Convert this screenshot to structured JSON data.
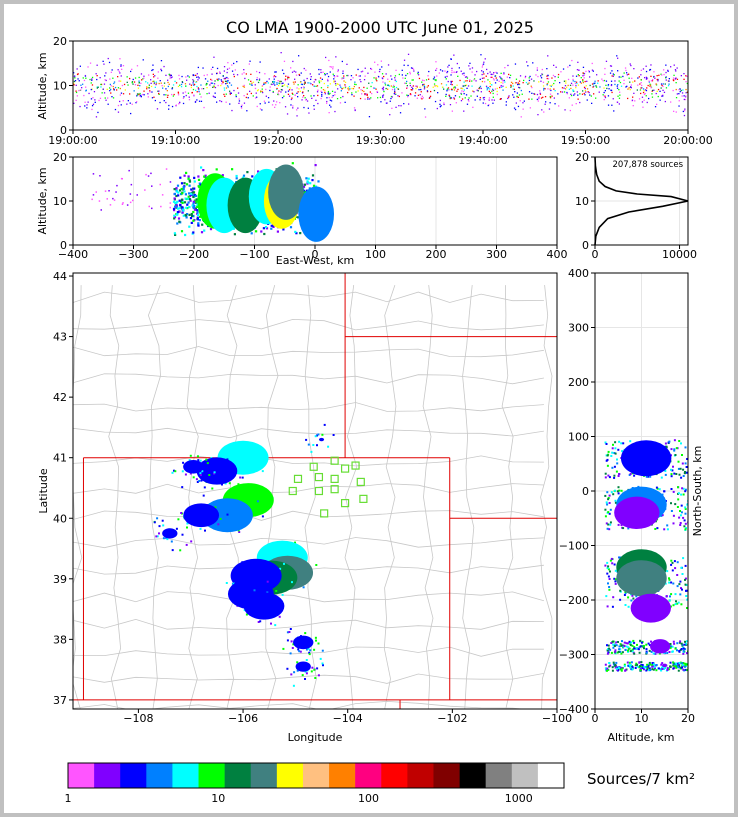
{
  "title": "CO LMA 1900-2000 UTC June 01, 2025",
  "sources_label": "207,878 sources",
  "colorbar_label": "Sources/7 km²",
  "colors": {
    "palette": [
      "#ff55ff",
      "#8000ff",
      "#0000ff",
      "#0080ff",
      "#00ffff",
      "#00ff00",
      "#008040",
      "#408080",
      "#ffff00",
      "#ffc080",
      "#ff8000",
      "#ff0080",
      "#ff0000",
      "#c00000",
      "#800000",
      "#000000",
      "#808080",
      "#c0c0c0",
      "#ffffff"
    ],
    "state_border": "#e00000",
    "county_border": "#c8c8c8",
    "station_marker": "#66dd33"
  },
  "chart_data": [
    {
      "id": "time-height",
      "type": "scatter",
      "ylabel": "Altitude, km",
      "ylim": [
        0,
        20
      ],
      "yticks": [
        "0",
        "10",
        "20"
      ],
      "xticks": [
        "19:00:00",
        "19:10:00",
        "19:20:00",
        "19:30:00",
        "19:40:00",
        "19:50:00",
        "20:00:00"
      ],
      "x_range_utc": [
        "19:00:00",
        "20:00:00"
      ],
      "altitude_band_km": [
        4,
        19
      ],
      "densest_altitude_km": 10
    },
    {
      "id": "ew-altitude",
      "type": "heatmap",
      "xlabel": "East-West, km",
      "ylabel": "Altitude, km",
      "xlim": [
        -400,
        400
      ],
      "ylim": [
        0,
        20
      ],
      "xticks": [
        "−400",
        "−300",
        "−200",
        "−100",
        "0",
        "100",
        "200",
        "300",
        "400"
      ],
      "yticks": [
        "0",
        "10",
        "20"
      ],
      "cells": [
        {
          "x": -165,
          "z": 10,
          "level": 13
        },
        {
          "x": -150,
          "z": 9,
          "level": 12
        },
        {
          "x": -115,
          "z": 9,
          "level": 14
        },
        {
          "x": -80,
          "z": 11,
          "level": 12
        },
        {
          "x": -55,
          "z": 10,
          "level": 16
        },
        {
          "x": -48,
          "z": 12,
          "level": 15
        },
        {
          "x": 2,
          "z": 7,
          "level": 11
        }
      ]
    },
    {
      "id": "altitude-histogram",
      "type": "line",
      "xlim": [
        0,
        11000
      ],
      "ylim": [
        0,
        20
      ],
      "xticks": [
        "0",
        "10000"
      ],
      "yticks": [
        "0",
        "10",
        "20"
      ],
      "x": [
        0,
        100,
        500,
        1500,
        4000,
        8000,
        11000,
        9000,
        5000,
        2500,
        1200,
        500,
        200,
        50,
        0
      ],
      "y": [
        0,
        2,
        4,
        6,
        7.5,
        8.8,
        10,
        11,
        11.6,
        12.3,
        13.3,
        14.5,
        16,
        18,
        20
      ]
    },
    {
      "id": "plan-view",
      "type": "heatmap",
      "xlabel": "Longitude",
      "ylabel": "Latitude",
      "xlim": [
        -109.25,
        -100
      ],
      "ylim": [
        36.85,
        44.05
      ],
      "xticks": [
        "−108",
        "−106",
        "−104",
        "−102",
        "−100"
      ],
      "yticks": [
        "37",
        "38",
        "39",
        "40",
        "41",
        "42",
        "43",
        "44"
      ],
      "stations": [
        [
          -104.65,
          40.85
        ],
        [
          -104.25,
          40.95
        ],
        [
          -104.05,
          40.82
        ],
        [
          -103.85,
          40.87
        ],
        [
          -104.95,
          40.65
        ],
        [
          -104.55,
          40.68
        ],
        [
          -104.25,
          40.65
        ],
        [
          -103.75,
          40.6
        ],
        [
          -105.05,
          40.45
        ],
        [
          -104.55,
          40.45
        ],
        [
          -104.25,
          40.48
        ],
        [
          -103.7,
          40.32
        ],
        [
          -104.05,
          40.25
        ],
        [
          -104.45,
          40.08
        ]
      ],
      "cells": [
        {
          "lon": -106.0,
          "lat": 41.0,
          "level": 13
        },
        {
          "lon": -106.5,
          "lat": 40.78,
          "level": 9
        },
        {
          "lon": -106.95,
          "lat": 40.85,
          "level": 5
        },
        {
          "lon": -105.9,
          "lat": 40.3,
          "level": 14
        },
        {
          "lon": -106.3,
          "lat": 40.05,
          "level": 12
        },
        {
          "lon": -106.8,
          "lat": 40.05,
          "level": 8
        },
        {
          "lon": -107.4,
          "lat": 39.75,
          "level": 4
        },
        {
          "lon": -105.25,
          "lat": 39.35,
          "level": 13
        },
        {
          "lon": -105.15,
          "lat": 39.1,
          "level": 16
        },
        {
          "lon": -105.45,
          "lat": 39.02,
          "level": 15
        },
        {
          "lon": -105.75,
          "lat": 39.05,
          "level": 11
        },
        {
          "lon": -105.85,
          "lat": 38.75,
          "level": 10
        },
        {
          "lon": -105.6,
          "lat": 38.55,
          "level": 9
        },
        {
          "lon": -104.85,
          "lat": 37.95,
          "level": 5
        },
        {
          "lon": -104.85,
          "lat": 37.55,
          "level": 4
        },
        {
          "lon": -104.5,
          "lat": 41.3,
          "level": 2
        }
      ]
    },
    {
      "id": "altitude-ns",
      "type": "heatmap",
      "xlabel": "Altitude, km",
      "ylabel": "North-South, km",
      "xlim": [
        0,
        20
      ],
      "ylim": [
        -400,
        400
      ],
      "xticks": [
        "0",
        "10",
        "20"
      ],
      "yticks": [
        "−400",
        "−300",
        "−200",
        "−100",
        "0",
        "100",
        "200",
        "300",
        "400"
      ],
      "cells": [
        {
          "z": 11,
          "y": 60,
          "level": 11
        },
        {
          "z": 10,
          "y": -25,
          "level": 12
        },
        {
          "z": 9,
          "y": -40,
          "level": 9
        },
        {
          "z": 10,
          "y": -140,
          "level": 15
        },
        {
          "z": 10,
          "y": -160,
          "level": 16
        },
        {
          "z": 12,
          "y": -215,
          "level": 8
        },
        {
          "z": 14,
          "y": -285,
          "level": 4
        },
        {
          "z": 15,
          "y": -320,
          "level": 1
        }
      ]
    },
    {
      "id": "colorbar",
      "type": "colorbar",
      "scale": "log",
      "range": [
        1,
        2000
      ],
      "ticks": [
        "1",
        "10",
        "100",
        "1000"
      ]
    }
  ]
}
